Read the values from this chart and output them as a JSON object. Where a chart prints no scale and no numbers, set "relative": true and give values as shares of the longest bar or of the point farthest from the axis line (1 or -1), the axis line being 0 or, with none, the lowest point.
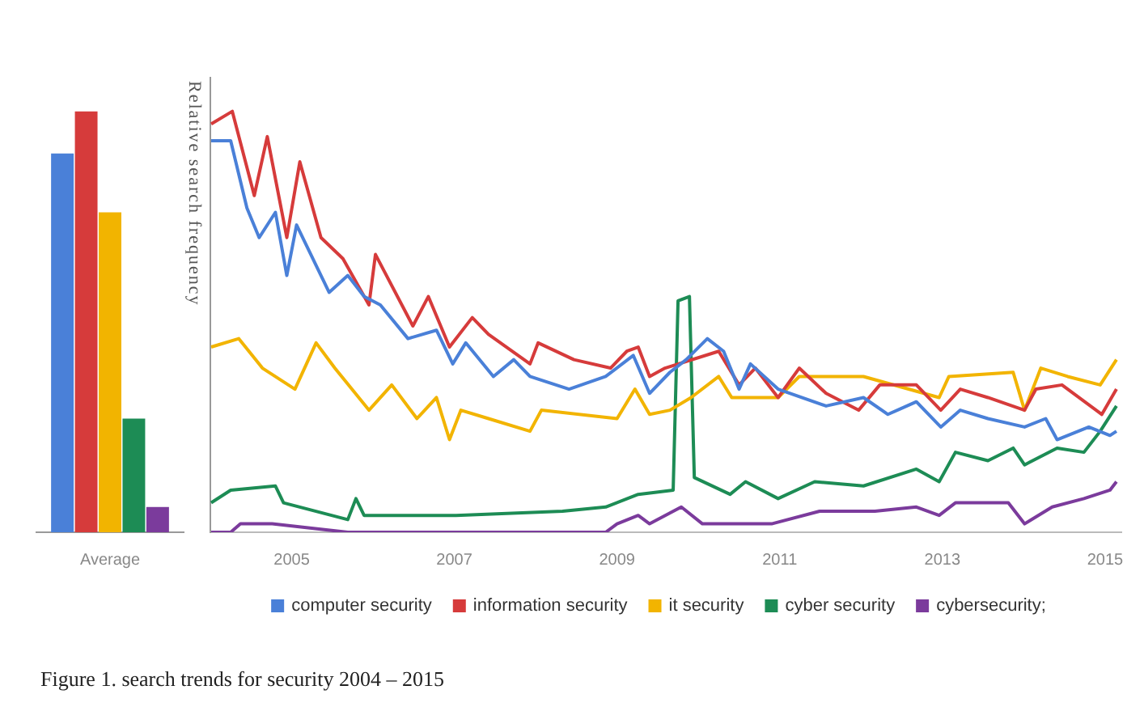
{
  "chart_data": [
    {
      "type": "bar",
      "relative": true,
      "categories": [
        "Average"
      ],
      "legend": false,
      "series": [
        {
          "color": "#4a80d8",
          "values": [
            0.9
          ]
        },
        {
          "color": "#d63b3b",
          "values": [
            1
          ]
        },
        {
          "color": "#f2b400",
          "values": [
            0.76
          ]
        },
        {
          "color": "#1d8c55",
          "values": [
            0.27
          ]
        },
        {
          "color": "#7b3b9c",
          "values": [
            0.06
          ]
        }
      ]
    },
    {
      "type": "line",
      "relative": true,
      "ylabel": "Relative search frequency",
      "xlim": [
        2004,
        2015.2
      ],
      "xticks": [
        2005,
        2007,
        2009,
        2011,
        2013,
        2015
      ],
      "legend": "bottom",
      "marker": "none",
      "series": [
        {
          "name": "computer security",
          "color": "#4a80d8",
          "x": [
            2004.01,
            2004.25,
            2004.45,
            2004.6,
            2004.8,
            2004.94,
            2005.06,
            2005.46,
            2005.69,
            2005.89,
            2006.09,
            2006.43,
            2006.78,
            2006.98,
            2007.14,
            2007.48,
            2007.73,
            2007.93,
            2008.41,
            2008.86,
            2009.2,
            2009.4,
            2009.65,
            2009.85,
            2010.11,
            2010.31,
            2010.5,
            2010.64,
            2010.98,
            2011.57,
            2012.03,
            2012.33,
            2012.68,
            2012.98,
            2013.22,
            2013.56,
            2014.01,
            2014.27,
            2014.41,
            2014.8,
            2015.06,
            2015.14
          ],
          "values": [
            0.93,
            0.93,
            0.77,
            0.7,
            0.76,
            0.61,
            0.73,
            0.57,
            0.61,
            0.56,
            0.54,
            0.46,
            0.48,
            0.4,
            0.45,
            0.37,
            0.41,
            0.37,
            0.34,
            0.37,
            0.42,
            0.33,
            0.38,
            0.41,
            0.46,
            0.43,
            0.34,
            0.4,
            0.34,
            0.3,
            0.32,
            0.28,
            0.31,
            0.25,
            0.29,
            0.27,
            0.25,
            0.27,
            0.22,
            0.25,
            0.23,
            0.24
          ]
        },
        {
          "name": "information security",
          "color": "#d63b3b",
          "x": [
            2004.01,
            2004.27,
            2004.54,
            2004.7,
            2004.94,
            2005.1,
            2005.36,
            2005.63,
            2005.95,
            2006.03,
            2006.49,
            2006.68,
            2006.94,
            2007.22,
            2007.42,
            2007.93,
            2008.03,
            2008.47,
            2008.92,
            2009.12,
            2009.26,
            2009.4,
            2009.59,
            2010.25,
            2010.5,
            2010.7,
            2010.98,
            2011.24,
            2011.57,
            2011.97,
            2012.23,
            2012.68,
            2012.98,
            2013.22,
            2013.56,
            2014.01,
            2014.15,
            2014.47,
            2014.96,
            2015.14
          ],
          "values": [
            0.97,
            1,
            0.8,
            0.94,
            0.7,
            0.88,
            0.7,
            0.65,
            0.54,
            0.66,
            0.49,
            0.56,
            0.44,
            0.51,
            0.47,
            0.4,
            0.45,
            0.41,
            0.39,
            0.43,
            0.44,
            0.37,
            0.39,
            0.43,
            0.35,
            0.39,
            0.32,
            0.39,
            0.33,
            0.29,
            0.35,
            0.35,
            0.29,
            0.34,
            0.32,
            0.29,
            0.34,
            0.35,
            0.28,
            0.34
          ]
        },
        {
          "name": "it security",
          "color": "#f2b400",
          "x": [
            2004.01,
            2004.35,
            2004.64,
            2005.04,
            2005.3,
            2005.53,
            2005.95,
            2006.23,
            2006.54,
            2006.78,
            2006.94,
            2007.08,
            2007.42,
            2007.93,
            2008.07,
            2009,
            2009.22,
            2009.4,
            2009.65,
            2009.91,
            2010.25,
            2010.41,
            2010.98,
            2011.24,
            2012.03,
            2012.96,
            2013.08,
            2013.87,
            2014.01,
            2014.21,
            2014.54,
            2014.94,
            2015.14
          ],
          "values": [
            0.44,
            0.46,
            0.39,
            0.34,
            0.45,
            0.39,
            0.29,
            0.35,
            0.27,
            0.32,
            0.22,
            0.29,
            0.27,
            0.24,
            0.29,
            0.27,
            0.34,
            0.28,
            0.29,
            0.32,
            0.37,
            0.32,
            0.32,
            0.37,
            0.37,
            0.32,
            0.37,
            0.38,
            0.29,
            0.39,
            0.37,
            0.35,
            0.41
          ]
        },
        {
          "name": "cyber security",
          "color": "#1d8c55",
          "x": [
            2004.01,
            2004.25,
            2004.8,
            2004.9,
            2005.69,
            2005.79,
            2005.89,
            2007.02,
            2008.33,
            2008.86,
            2009.26,
            2009.69,
            2009.75,
            2009.89,
            2009.95,
            2010.39,
            2010.58,
            2010.98,
            2011.43,
            2012.03,
            2012.68,
            2012.96,
            2013.16,
            2013.56,
            2013.87,
            2014.01,
            2014.41,
            2014.74,
            2014.94,
            2015.14
          ],
          "values": [
            0.07,
            0.1,
            0.11,
            0.07,
            0.03,
            0.08,
            0.04,
            0.04,
            0.05,
            0.06,
            0.09,
            0.1,
            0.55,
            0.56,
            0.13,
            0.09,
            0.12,
            0.08,
            0.12,
            0.11,
            0.15,
            0.12,
            0.19,
            0.17,
            0.2,
            0.16,
            0.2,
            0.19,
            0.24,
            0.3
          ]
        },
        {
          "name": "cybersecurity;",
          "color": "#7b3b9c",
          "x": [
            2004.01,
            2004.25,
            2004.37,
            2004.76,
            2005.69,
            2006.35,
            2008.86,
            2009,
            2009.26,
            2009.4,
            2009.79,
            2010.05,
            2010.9,
            2011.49,
            2012.17,
            2012.68,
            2012.96,
            2013.16,
            2013.81,
            2014.01,
            2014.35,
            2014.74,
            2015.06,
            2015.14
          ],
          "values": [
            0,
            0,
            0.02,
            0.02,
            0,
            0,
            0,
            0.02,
            0.04,
            0.02,
            0.06,
            0.02,
            0.02,
            0.05,
            0.05,
            0.06,
            0.04,
            0.07,
            0.07,
            0.02,
            0.06,
            0.08,
            0.1,
            0.12
          ]
        }
      ],
      "annotations": [
        "Figure 1. search trends for security 2004 – 2015"
      ]
    }
  ]
}
